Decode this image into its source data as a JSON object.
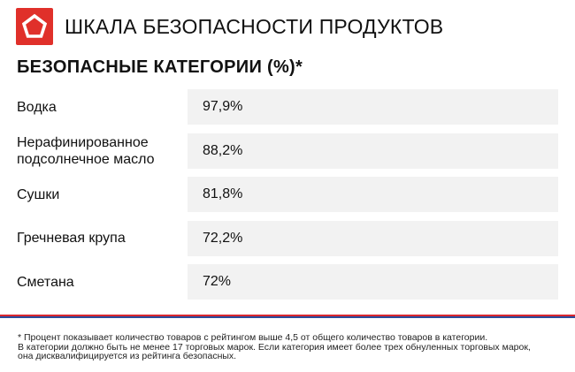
{
  "header": {
    "title": "ШКАЛА БЕЗОПАСНОСТИ ПРОДУКТОВ",
    "logo_icon": "pentagon-icon",
    "logo_color": "#e0302a"
  },
  "section": {
    "title": "БЕЗОПАСНЫЕ КАТЕГОРИИ (%)*"
  },
  "chart_data": {
    "type": "table",
    "title": "БЕЗОПАСНЫЕ КАТЕГОРИИ (%)*",
    "categories": [
      "Водка",
      "Нерафинированное подсолнечное масло",
      "Сушки",
      "Гречневая крупа",
      "Сметана"
    ],
    "values": [
      97.9,
      88.2,
      81.8,
      72.2,
      72
    ],
    "rows": [
      {
        "label_lines": [
          "Водка"
        ],
        "value": "97,9%"
      },
      {
        "label_lines": [
          "Нерафинированное",
          "подсолнечное масло"
        ],
        "value": "88,2%"
      },
      {
        "label_lines": [
          "Сушки"
        ],
        "value": "81,8%"
      },
      {
        "label_lines": [
          "Гречневая крупа"
        ],
        "value": "72,2%"
      },
      {
        "label_lines": [
          "Сметана"
        ],
        "value": "72%"
      }
    ]
  },
  "footnote": {
    "lines": [
      "* Процент показывает количество товаров с рейтингом выше 4,5 от общего количество товаров в категории.",
      "В категории должно быть не менее 17 торговых марок. Если категория имеет более трех обнуленных торговых марок,",
      "она дисквалифицируется из рейтинга безопасных."
    ]
  },
  "colors": {
    "accent_red": "#d8262f",
    "accent_blue": "#2a4b9b",
    "value_cell_bg": "#f2f2f2"
  }
}
